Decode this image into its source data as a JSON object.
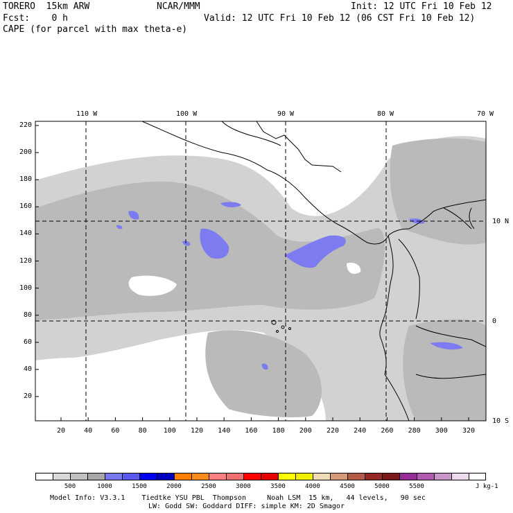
{
  "header": {
    "model_line": "TORERO  15km ARW",
    "org": "NCAR/MMM",
    "init": "Init: 12 UTC Fri 10 Feb 12",
    "fcst": "Fcst:    0 h",
    "valid": "Valid: 12 UTC Fri 10 Feb 12 (06 CST Fri 10 Feb 12)",
    "field": "CAPE (for parcel with max theta-e)"
  },
  "map": {
    "top_lon_labels": [
      "110 W",
      "100 W",
      "90 W",
      "80 W",
      "70 W"
    ],
    "right_lat_labels": [
      "10 N",
      "0",
      "10 S"
    ],
    "y_ticks": [
      "220",
      "200",
      "180",
      "160",
      "140",
      "120",
      "100",
      "80",
      "60",
      "40",
      "20"
    ],
    "x_ticks": [
      "20",
      "40",
      "60",
      "80",
      "100",
      "120",
      "140",
      "160",
      "180",
      "200",
      "220",
      "240",
      "260",
      "280",
      "300",
      "320"
    ],
    "colors": {
      "cape_500": "#d2d2d2",
      "cape_1000": "#bababa",
      "cape_1500": "#7c7cf0",
      "coast": "#000000",
      "grid": "#000000"
    }
  },
  "colorbar": {
    "labels": [
      "500",
      "1000",
      "1500",
      "2000",
      "2500",
      "3000",
      "3500",
      "4000",
      "4500",
      "5000",
      "5500"
    ],
    "unit": "J kg-1",
    "colors": [
      "#ffffff",
      "#d9d9d9",
      "#c0c0c0",
      "#a8a8a8",
      "#7878f0",
      "#5a5af0",
      "#0000f0",
      "#0000c0",
      "#ff8000",
      "#ff8c1a",
      "#ff8080",
      "#f07070",
      "#ff0000",
      "#e60000",
      "#ffff00",
      "#f0f000",
      "#f0dcb4",
      "#d49a7a",
      "#b45a46",
      "#962828",
      "#7a1a1a",
      "#962c96",
      "#b05ab0",
      "#c896c8",
      "#eedaee",
      "#ffffff"
    ]
  },
  "footer": {
    "line1": "Model Info: V3.3.1    Tiedtke YSU PBL  Thompson     Noah LSM  15 km,   44 levels,   90 sec",
    "line2": "LW: Godd SW: Goddard DIFF: simple KM: 2D Smagor"
  }
}
